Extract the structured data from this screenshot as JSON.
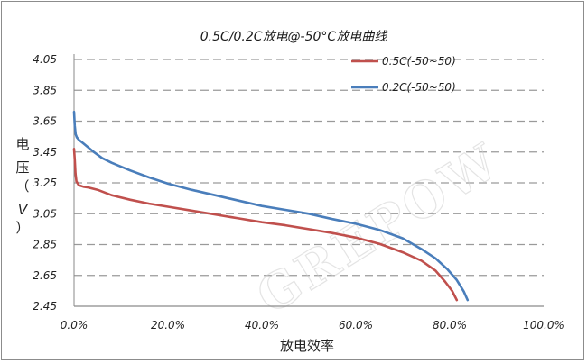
{
  "chart_data": {
    "type": "line",
    "title": "0.5C/0.2C放电@-50°C放电曲线",
    "xlabel": "放电效率",
    "ylabel": [
      "电",
      "压",
      "（",
      "V",
      "）"
    ],
    "xlim": [
      0,
      100
    ],
    "ylim": [
      2.45,
      4.15
    ],
    "x_ticks": [
      "0.0%",
      "20.0%",
      "40.0%",
      "60.0%",
      "80.0%",
      "100.0%"
    ],
    "x_tick_values": [
      0,
      20,
      40,
      60,
      80,
      100
    ],
    "y_ticks": [
      "4.05",
      "3.85",
      "3.65",
      "3.45",
      "3.25",
      "3.05",
      "2.85",
      "2.65",
      "2.45"
    ],
    "y_tick_values": [
      4.05,
      3.85,
      3.65,
      3.45,
      3.25,
      3.05,
      2.85,
      2.65,
      2.45
    ],
    "grid": "horizontal dashed",
    "legend_position": "top-right",
    "watermark": "GREPOW",
    "series": [
      {
        "name": "0.5C(-50~50)",
        "color": "#c0504d",
        "points": [
          [
            0,
            3.47
          ],
          [
            0.15,
            3.4
          ],
          [
            0.3,
            3.31
          ],
          [
            0.5,
            3.26
          ],
          [
            1,
            3.235
          ],
          [
            2,
            3.225
          ],
          [
            3,
            3.22
          ],
          [
            5,
            3.205
          ],
          [
            8,
            3.17
          ],
          [
            12,
            3.14
          ],
          [
            16,
            3.115
          ],
          [
            20,
            3.095
          ],
          [
            25,
            3.07
          ],
          [
            30,
            3.045
          ],
          [
            35,
            3.02
          ],
          [
            40,
            2.995
          ],
          [
            45,
            2.975
          ],
          [
            50,
            2.95
          ],
          [
            55,
            2.925
          ],
          [
            60,
            2.895
          ],
          [
            65,
            2.855
          ],
          [
            70,
            2.8
          ],
          [
            74,
            2.745
          ],
          [
            77,
            2.68
          ],
          [
            79,
            2.61
          ],
          [
            80.5,
            2.55
          ],
          [
            81.5,
            2.49
          ]
        ]
      },
      {
        "name": "0.2C(-50~50)",
        "color": "#4a7ebb",
        "points": [
          [
            0,
            3.71
          ],
          [
            0.15,
            3.62
          ],
          [
            0.35,
            3.565
          ],
          [
            0.6,
            3.545
          ],
          [
            1,
            3.53
          ],
          [
            2,
            3.505
          ],
          [
            4,
            3.455
          ],
          [
            6,
            3.41
          ],
          [
            8,
            3.38
          ],
          [
            12,
            3.33
          ],
          [
            16,
            3.285
          ],
          [
            20,
            3.245
          ],
          [
            25,
            3.205
          ],
          [
            30,
            3.17
          ],
          [
            35,
            3.135
          ],
          [
            40,
            3.1
          ],
          [
            45,
            3.075
          ],
          [
            50,
            3.05
          ],
          [
            55,
            3.015
          ],
          [
            60,
            2.985
          ],
          [
            65,
            2.945
          ],
          [
            70,
            2.89
          ],
          [
            74,
            2.82
          ],
          [
            77,
            2.76
          ],
          [
            79.5,
            2.69
          ],
          [
            81.5,
            2.62
          ],
          [
            83,
            2.545
          ],
          [
            83.8,
            2.49
          ]
        ]
      }
    ]
  }
}
